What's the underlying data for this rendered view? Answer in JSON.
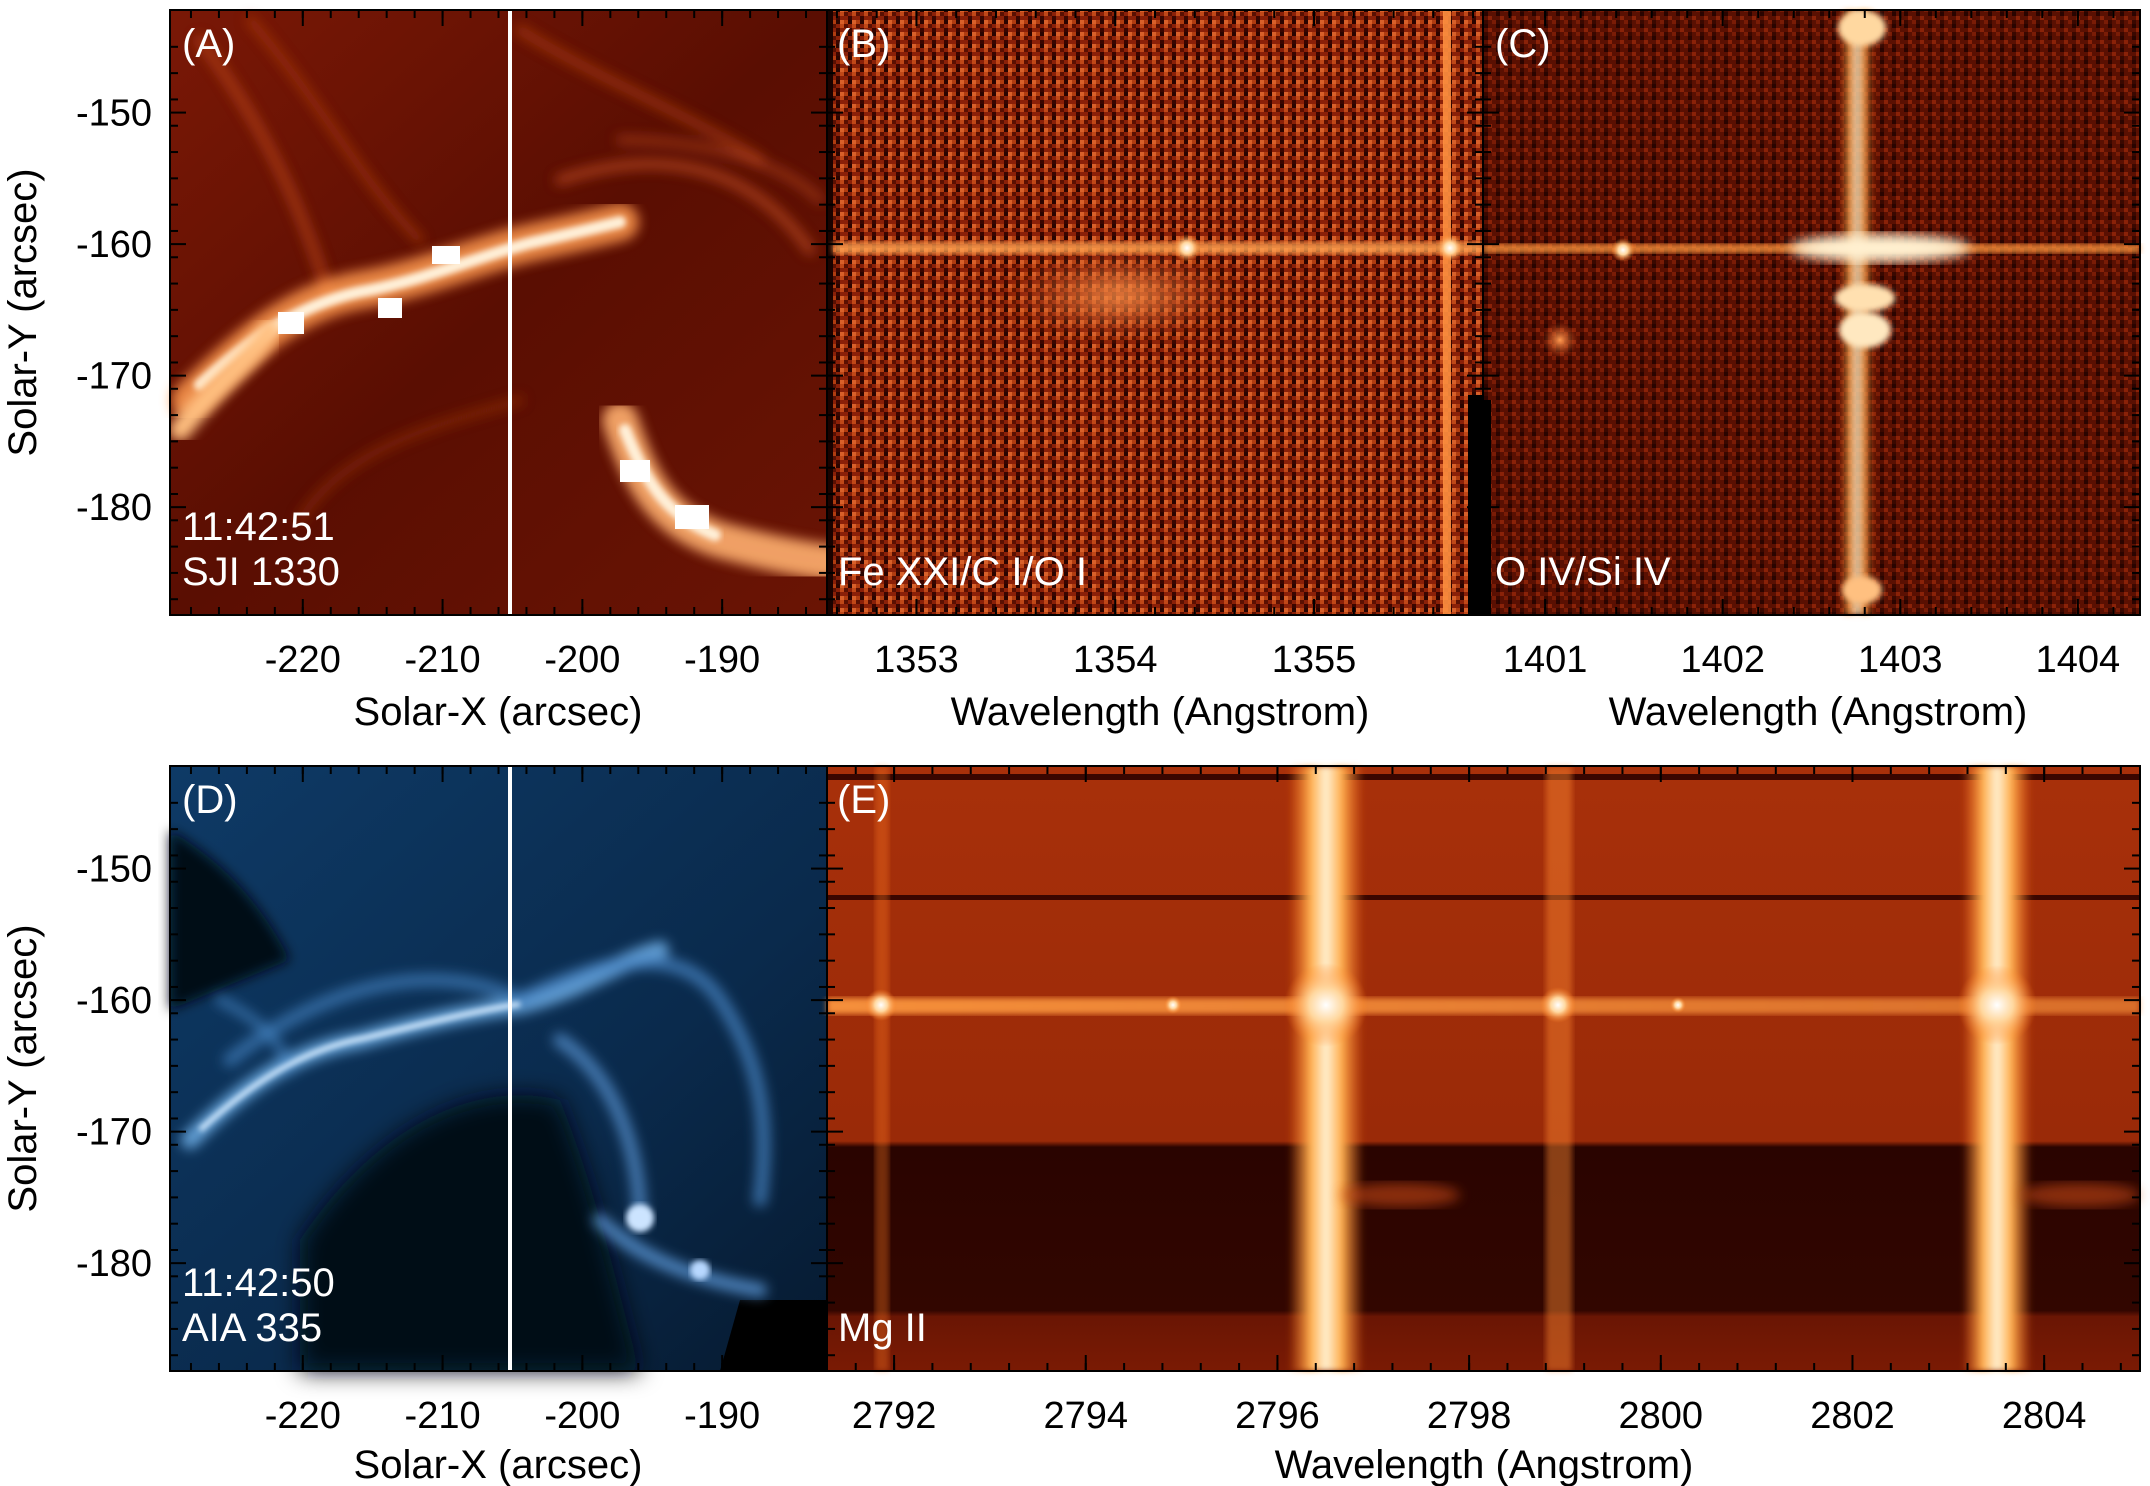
{
  "figure": {
    "panels": [
      {
        "id": "A",
        "tag": "(A)",
        "line1": "11:42:51",
        "line2": "SJI 1330"
      },
      {
        "id": "B",
        "tag": "(B)",
        "line1": "",
        "line2": "Fe XXI/C I/O I"
      },
      {
        "id": "C",
        "tag": "(C)",
        "line1": "",
        "line2": "O IV/Si IV"
      },
      {
        "id": "D",
        "tag": "(D)",
        "line1": "11:42:50",
        "line2": "AIA 335"
      },
      {
        "id": "E",
        "tag": "(E)",
        "line1": "",
        "line2": "Mg II"
      }
    ],
    "colors": {
      "iris_dark": "#3a0400",
      "iris_mid": "#b83a10",
      "iris_bright": "#fff4dc",
      "aia_dark": "#000814",
      "aia_mid": "#1d5a92",
      "aia_bright": "#e8f2ff"
    }
  },
  "chart_data": [
    {
      "type": "heatmap",
      "panel": "A",
      "xlabel": "Solar-X (arcsec)",
      "ylabel": "Solar-Y (arcsec)",
      "x_ticks": [
        -220,
        -210,
        -200,
        -190
      ],
      "y_ticks": [
        -150,
        -160,
        -170,
        -180
      ],
      "slit_x": -205.5
    },
    {
      "type": "heatmap",
      "panel": "B",
      "xlabel": "Wavelength (Angstrom)",
      "ylabel": "",
      "x_ticks": [
        1353,
        1354,
        1355
      ],
      "y_ticks": [
        -150,
        -160,
        -170,
        -180
      ],
      "xlim": [
        1352.55,
        1355.85
      ]
    },
    {
      "type": "heatmap",
      "panel": "C",
      "xlabel": "Wavelength (Angstrom)",
      "ylabel": "",
      "x_ticks": [
        1401,
        1402,
        1403,
        1404
      ],
      "y_ticks": [
        -150,
        -160,
        -170,
        -180
      ],
      "xlim": [
        1400.65,
        1404.35
      ]
    },
    {
      "type": "heatmap",
      "panel": "D",
      "xlabel": "Solar-X (arcsec)",
      "ylabel": "Solar-Y (arcsec)",
      "x_ticks": [
        -220,
        -210,
        -200,
        -190
      ],
      "y_ticks": [
        -150,
        -160,
        -170,
        -180
      ],
      "slit_x": -205.5
    },
    {
      "type": "heatmap",
      "panel": "E",
      "xlabel": "Wavelength (Angstrom)",
      "ylabel": "",
      "x_ticks": [
        2792,
        2794,
        2796,
        2798,
        2800,
        2802,
        2804
      ],
      "y_ticks": [
        -150,
        -160,
        -170,
        -180
      ],
      "xlim": [
        2791.3,
        2805.0
      ]
    }
  ]
}
